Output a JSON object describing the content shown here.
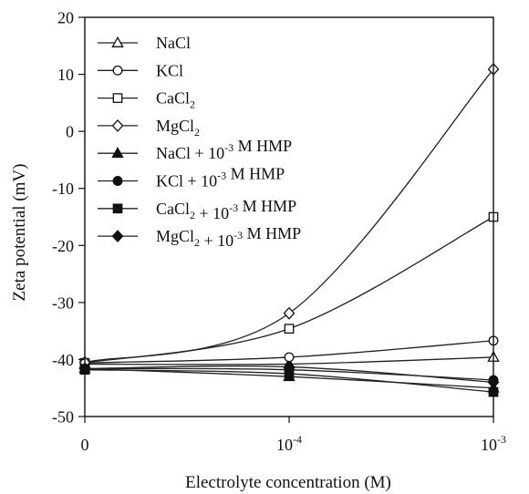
{
  "chart_data": {
    "type": "line",
    "title": "",
    "xlabel": "Electrolyte concentration (M)",
    "ylabel": "Zeta potential (mV)",
    "ylim": [
      -50,
      20
    ],
    "yticks": [
      "20",
      "10",
      "0",
      "-10",
      "-20",
      "-30",
      "-40",
      "-50"
    ],
    "x": [
      "0",
      "10^-4",
      "10^-3"
    ],
    "x_tick_labels": [
      {
        "base": "0",
        "exp": ""
      },
      {
        "base": "10",
        "exp": "-4"
      },
      {
        "base": "10",
        "exp": "-3"
      }
    ],
    "grid": false,
    "legend_position": "top-left",
    "series": [
      {
        "name": "NaCl",
        "legend": [
          {
            "t": "NaCl",
            "s": ""
          }
        ],
        "marker": "triangle",
        "filled": false,
        "values": [
          -40.8,
          -40.8,
          -39.6
        ]
      },
      {
        "name": "KCl",
        "legend": [
          {
            "t": "KCl",
            "s": ""
          }
        ],
        "marker": "circle",
        "filled": false,
        "values": [
          -40.6,
          -39.6,
          -36.7
        ]
      },
      {
        "name": "CaCl2",
        "legend": [
          {
            "t": "CaCl",
            "s": ""
          },
          {
            "t": "2",
            "s": "sub"
          }
        ],
        "marker": "square",
        "filled": false,
        "values": [
          -40.6,
          -34.6,
          -15.0
        ]
      },
      {
        "name": "MgCl2",
        "legend": [
          {
            "t": "MgCl",
            "s": ""
          },
          {
            "t": "2",
            "s": "sub"
          }
        ],
        "marker": "diamond",
        "filled": false,
        "values": [
          -40.5,
          -31.9,
          10.9
        ]
      },
      {
        "name": "NaCl + 10-3 M HMP",
        "legend": [
          {
            "t": "NaCl + 10",
            "s": ""
          },
          {
            "t": "-3",
            "s": "sup"
          },
          {
            "t": " M HMP",
            "s": ""
          }
        ],
        "marker": "triangle",
        "filled": true,
        "values": [
          -41.6,
          -43.0,
          -45.0
        ]
      },
      {
        "name": "KCl + 10-3 M HMP",
        "legend": [
          {
            "t": "KCl + 10",
            "s": ""
          },
          {
            "t": "-3",
            "s": "sup"
          },
          {
            "t": " M HMP",
            "s": ""
          }
        ],
        "marker": "circle",
        "filled": true,
        "values": [
          -41.6,
          -41.8,
          -43.6
        ]
      },
      {
        "name": "CaCl2 + 10-3 M HMP",
        "legend": [
          {
            "t": "CaCl",
            "s": ""
          },
          {
            "t": "2",
            "s": "sub"
          },
          {
            "t": " + 10",
            "s": ""
          },
          {
            "t": "-3",
            "s": "sup"
          },
          {
            "t": " M HMP",
            "s": ""
          }
        ],
        "marker": "square",
        "filled": true,
        "values": [
          -41.8,
          -42.5,
          -45.7
        ]
      },
      {
        "name": "MgCl2 + 10-3 M HMP",
        "legend": [
          {
            "t": "MgCl",
            "s": ""
          },
          {
            "t": "2",
            "s": "sub"
          },
          {
            "t": " + 10",
            "s": ""
          },
          {
            "t": "-3",
            "s": "sup"
          },
          {
            "t": " M HMP",
            "s": ""
          }
        ],
        "marker": "diamond",
        "filled": true,
        "values": [
          -41.6,
          -41.3,
          -44.0
        ]
      }
    ]
  }
}
